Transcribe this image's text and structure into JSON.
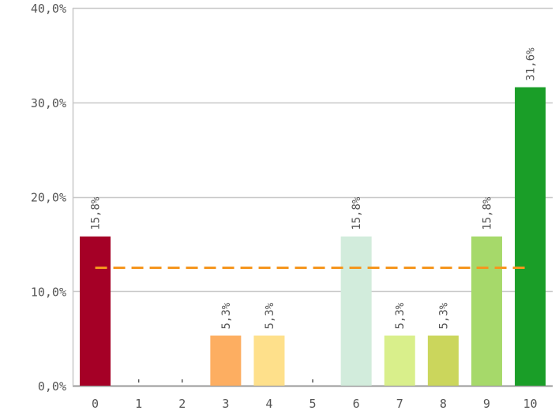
{
  "chart_data": {
    "type": "bar",
    "categories": [
      "0",
      "1",
      "2",
      "3",
      "4",
      "5",
      "6",
      "7",
      "8",
      "9",
      "10"
    ],
    "values": [
      15.8,
      0,
      0,
      5.3,
      5.3,
      0,
      15.8,
      5.3,
      5.3,
      15.8,
      31.6
    ],
    "data_labels": [
      "15,8%",
      "",
      "",
      "5,3%",
      "5,3%",
      "",
      "15,8%",
      "5,3%",
      "5,3%",
      "15,8%",
      "31,6%"
    ],
    "bar_colors": [
      "#a50026",
      "#d73027",
      "#f46d43",
      "#fdae61",
      "#fee08b",
      "#ffffbf",
      "#d2ecdc",
      "#d9ef8b",
      "#cbd65c",
      "#a6d96a",
      "#1a9e28"
    ],
    "y_ticks": [
      0,
      10,
      20,
      30,
      40
    ],
    "y_tick_labels": [
      "0,0%",
      "10,0%",
      "20,0%",
      "30,0%",
      "40,0%"
    ],
    "ylim": [
      0,
      40
    ],
    "average_line": {
      "value": 12.5,
      "color": "#f5961e",
      "style": "dashed"
    },
    "grid": true,
    "title": "",
    "xlabel": "",
    "ylabel": ""
  }
}
